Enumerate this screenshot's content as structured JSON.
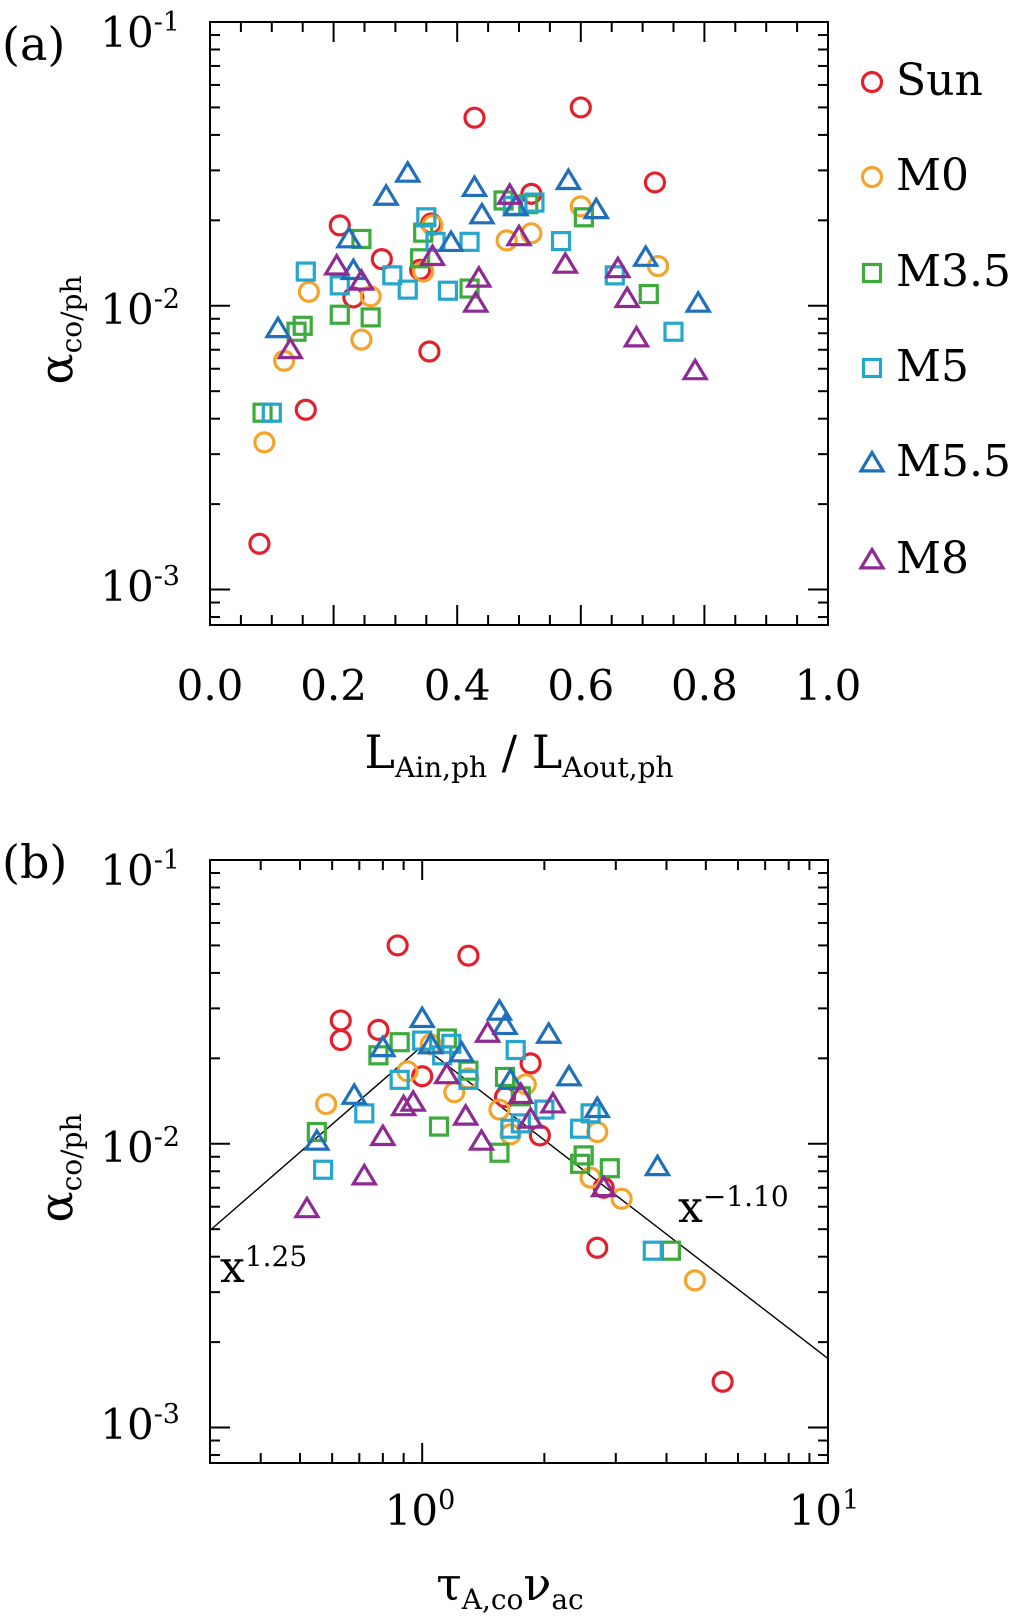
{
  "colors": {
    "Sun": "#e3202c",
    "M0": "#f4a42a",
    "M3.5": "#3cab3c",
    "M5": "#25a6cc",
    "M5.5": "#1f6fba",
    "M8": "#8e2b93"
  },
  "legend_markers": [
    "circle",
    "circle",
    "square",
    "square",
    "triangle",
    "triangle"
  ],
  "chart_data": [
    {
      "type": "scatter",
      "panel_label": "(a)",
      "xscale": "linear",
      "yscale": "log",
      "xlim": [
        0.0,
        1.0
      ],
      "ylim": [
        0.00075,
        0.1
      ],
      "xticks": [
        0.0,
        0.2,
        0.4,
        0.6,
        0.8,
        1.0
      ],
      "xtick_labels": [
        "0.0",
        "0.2",
        "0.4",
        "0.6",
        "0.8",
        "1.0"
      ],
      "ytick_labels": [
        {
          "base": "10",
          "exp": "-1",
          "value": 0.1
        },
        {
          "base": "10",
          "exp": "-2",
          "value": 0.01
        },
        {
          "base": "10",
          "exp": "-3",
          "value": 0.001
        }
      ],
      "xlabel": {
        "main1": "L",
        "sub1": "Ain,ph",
        "sep": " / ",
        "main2": "L",
        "sub2": "Aout,ph"
      },
      "ylabel": {
        "main": "α",
        "sub": "co/ph"
      },
      "legend": [
        "Sun",
        "M0",
        "M3.5",
        "M5",
        "M5.5",
        "M8"
      ],
      "legend_position": "outside-right",
      "series": [
        {
          "name": "Sun",
          "marker": "circle",
          "points": [
            [
              0.08,
              0.00145
            ],
            [
              0.155,
              0.0043
            ],
            [
              0.21,
              0.0192
            ],
            [
              0.232,
              0.0107
            ],
            [
              0.278,
              0.0146
            ],
            [
              0.34,
              0.0134
            ],
            [
              0.355,
              0.0069
            ],
            [
              0.358,
              0.0195
            ],
            [
              0.428,
              0.046
            ],
            [
              0.52,
              0.0248
            ],
            [
              0.6,
              0.05
            ],
            [
              0.72,
              0.0272
            ]
          ]
        },
        {
          "name": "M0",
          "marker": "circle",
          "points": [
            [
              0.088,
              0.0033
            ],
            [
              0.12,
              0.0064
            ],
            [
              0.16,
              0.0112
            ],
            [
              0.245,
              0.0076
            ],
            [
              0.26,
              0.0108
            ],
            [
              0.345,
              0.0132
            ],
            [
              0.36,
              0.0192
            ],
            [
              0.48,
              0.017
            ],
            [
              0.52,
              0.018
            ],
            [
              0.6,
              0.0224
            ],
            [
              0.725,
              0.0138
            ]
          ]
        },
        {
          "name": "M3.5",
          "marker": "square",
          "points": [
            [
              0.085,
              0.0042
            ],
            [
              0.14,
              0.0081
            ],
            [
              0.15,
              0.0085
            ],
            [
              0.21,
              0.0093
            ],
            [
              0.245,
              0.0172
            ],
            [
              0.26,
              0.0091
            ],
            [
              0.34,
              0.0147
            ],
            [
              0.345,
              0.0181
            ],
            [
              0.42,
              0.0115
            ],
            [
              0.475,
              0.0235
            ],
            [
              0.515,
              0.0228
            ],
            [
              0.605,
              0.0205
            ],
            [
              0.71,
              0.011
            ]
          ]
        },
        {
          "name": "M5",
          "marker": "square",
          "points": [
            [
              0.1,
              0.0042
            ],
            [
              0.155,
              0.0132
            ],
            [
              0.21,
              0.0118
            ],
            [
              0.295,
              0.0128
            ],
            [
              0.32,
              0.0114
            ],
            [
              0.35,
              0.0205
            ],
            [
              0.365,
              0.0168
            ],
            [
              0.385,
              0.0113
            ],
            [
              0.42,
              0.0168
            ],
            [
              0.49,
              0.0225
            ],
            [
              0.525,
              0.0231
            ],
            [
              0.568,
              0.0169
            ],
            [
              0.655,
              0.0128
            ],
            [
              0.75,
              0.0081
            ]
          ]
        },
        {
          "name": "M5.5",
          "marker": "triangle",
          "points": [
            [
              0.11,
              0.0083
            ],
            [
              0.225,
              0.0172
            ],
            [
              0.232,
              0.0133
            ],
            [
              0.285,
              0.0243
            ],
            [
              0.32,
              0.0293
            ],
            [
              0.39,
              0.0167
            ],
            [
              0.428,
              0.0261
            ],
            [
              0.44,
              0.0209
            ],
            [
              0.495,
              0.0223
            ],
            [
              0.58,
              0.0276
            ],
            [
              0.625,
              0.0218
            ],
            [
              0.705,
              0.0148
            ],
            [
              0.79,
              0.0102
            ]
          ]
        },
        {
          "name": "M8",
          "marker": "triangle",
          "points": [
            [
              0.13,
              0.007
            ],
            [
              0.205,
              0.0138
            ],
            [
              0.245,
              0.0122
            ],
            [
              0.36,
              0.0149
            ],
            [
              0.43,
              0.0102
            ],
            [
              0.435,
              0.0125
            ],
            [
              0.485,
              0.0245
            ],
            [
              0.5,
              0.0175
            ],
            [
              0.575,
              0.014
            ],
            [
              0.66,
              0.0135
            ],
            [
              0.675,
              0.0106
            ],
            [
              0.69,
              0.0077
            ],
            [
              0.785,
              0.0059
            ]
          ]
        }
      ]
    },
    {
      "type": "scatter",
      "panel_label": "(b)",
      "xscale": "log",
      "yscale": "log",
      "xlim": [
        0.3,
        10
      ],
      "ylim": [
        0.00075,
        0.1
      ],
      "xtick_labels": [
        {
          "base": "10",
          "exp": "0",
          "value": 1
        },
        {
          "base": "10",
          "exp": "1",
          "value": 10
        }
      ],
      "ytick_labels": [
        {
          "base": "10",
          "exp": "-1",
          "value": 0.1
        },
        {
          "base": "10",
          "exp": "-2",
          "value": 0.01
        },
        {
          "base": "10",
          "exp": "-3",
          "value": 0.001
        }
      ],
      "xlabel": {
        "main1": "τ",
        "sub1": "A,co",
        "main2": "ν",
        "sub2": "ac"
      },
      "ylabel": {
        "main": "α",
        "sub": "co/ph"
      },
      "fit_line": {
        "x": [
          0.3,
          1.0,
          10.0
        ],
        "y": [
          0.00495,
          0.0221,
          0.00175
        ]
      },
      "annotations": [
        {
          "base": "x",
          "exp": "1.25"
        },
        {
          "base": "x",
          "exp": "−1.10"
        }
      ],
      "series": [
        {
          "name": "Sun",
          "marker": "circle",
          "points": [
            [
              0.63,
              0.0272
            ],
            [
              0.63,
              0.0232
            ],
            [
              0.78,
              0.0252
            ],
            [
              0.87,
              0.05
            ],
            [
              1.0,
              0.0173
            ],
            [
              1.3,
              0.046
            ],
            [
              1.6,
              0.0146
            ],
            [
              1.85,
              0.0192
            ],
            [
              1.95,
              0.0107
            ],
            [
              2.7,
              0.0043
            ],
            [
              2.8,
              0.007
            ],
            [
              5.5,
              0.00145
            ]
          ]
        },
        {
          "name": "M0",
          "marker": "circle",
          "points": [
            [
              0.58,
              0.0138
            ],
            [
              0.92,
              0.018
            ],
            [
              1.05,
              0.0224
            ],
            [
              1.2,
              0.0152
            ],
            [
              1.3,
              0.017
            ],
            [
              1.55,
              0.0132
            ],
            [
              1.65,
              0.0108
            ],
            [
              1.8,
              0.0162
            ],
            [
              2.6,
              0.0076
            ],
            [
              2.7,
              0.011
            ],
            [
              3.1,
              0.0064
            ],
            [
              4.7,
              0.0033
            ]
          ]
        },
        {
          "name": "M3.5",
          "marker": "square",
          "points": [
            [
              0.55,
              0.011
            ],
            [
              0.78,
              0.0205
            ],
            [
              0.88,
              0.0228
            ],
            [
              1.1,
              0.0115
            ],
            [
              1.15,
              0.0235
            ],
            [
              1.3,
              0.0181
            ],
            [
              1.55,
              0.0093
            ],
            [
              1.6,
              0.0172
            ],
            [
              1.75,
              0.0147
            ],
            [
              2.45,
              0.0085
            ],
            [
              2.5,
              0.0091
            ],
            [
              2.9,
              0.0082
            ],
            [
              4.1,
              0.0042
            ]
          ]
        },
        {
          "name": "M5",
          "marker": "square",
          "points": [
            [
              0.57,
              0.0081
            ],
            [
              0.72,
              0.0128
            ],
            [
              0.88,
              0.0168
            ],
            [
              1.0,
              0.0231
            ],
            [
              1.12,
              0.0205
            ],
            [
              1.18,
              0.0225
            ],
            [
              1.3,
              0.0168
            ],
            [
              1.65,
              0.0113
            ],
            [
              1.7,
              0.0214
            ],
            [
              1.75,
              0.0118
            ],
            [
              2.0,
              0.0132
            ],
            [
              2.45,
              0.0113
            ],
            [
              2.6,
              0.0128
            ],
            [
              3.7,
              0.0042
            ]
          ]
        },
        {
          "name": "M5.5",
          "marker": "triangle",
          "points": [
            [
              0.55,
              0.0102
            ],
            [
              0.68,
              0.0148
            ],
            [
              0.8,
              0.0218
            ],
            [
              1.0,
              0.0276
            ],
            [
              1.05,
              0.0223
            ],
            [
              1.25,
              0.0209
            ],
            [
              1.55,
              0.0293
            ],
            [
              1.6,
              0.0261
            ],
            [
              1.65,
              0.0167
            ],
            [
              2.05,
              0.0243
            ],
            [
              2.3,
              0.0172
            ],
            [
              2.7,
              0.0133
            ],
            [
              3.8,
              0.0083
            ]
          ]
        },
        {
          "name": "M8",
          "marker": "triangle",
          "points": [
            [
              0.52,
              0.0059
            ],
            [
              0.72,
              0.0077
            ],
            [
              0.8,
              0.0106
            ],
            [
              0.9,
              0.0135
            ],
            [
              0.95,
              0.014
            ],
            [
              1.15,
              0.0175
            ],
            [
              1.28,
              0.0125
            ],
            [
              1.4,
              0.0102
            ],
            [
              1.45,
              0.0245
            ],
            [
              1.75,
              0.0149
            ],
            [
              1.85,
              0.0122
            ],
            [
              2.1,
              0.0138
            ],
            [
              2.8,
              0.007
            ]
          ]
        }
      ]
    }
  ]
}
